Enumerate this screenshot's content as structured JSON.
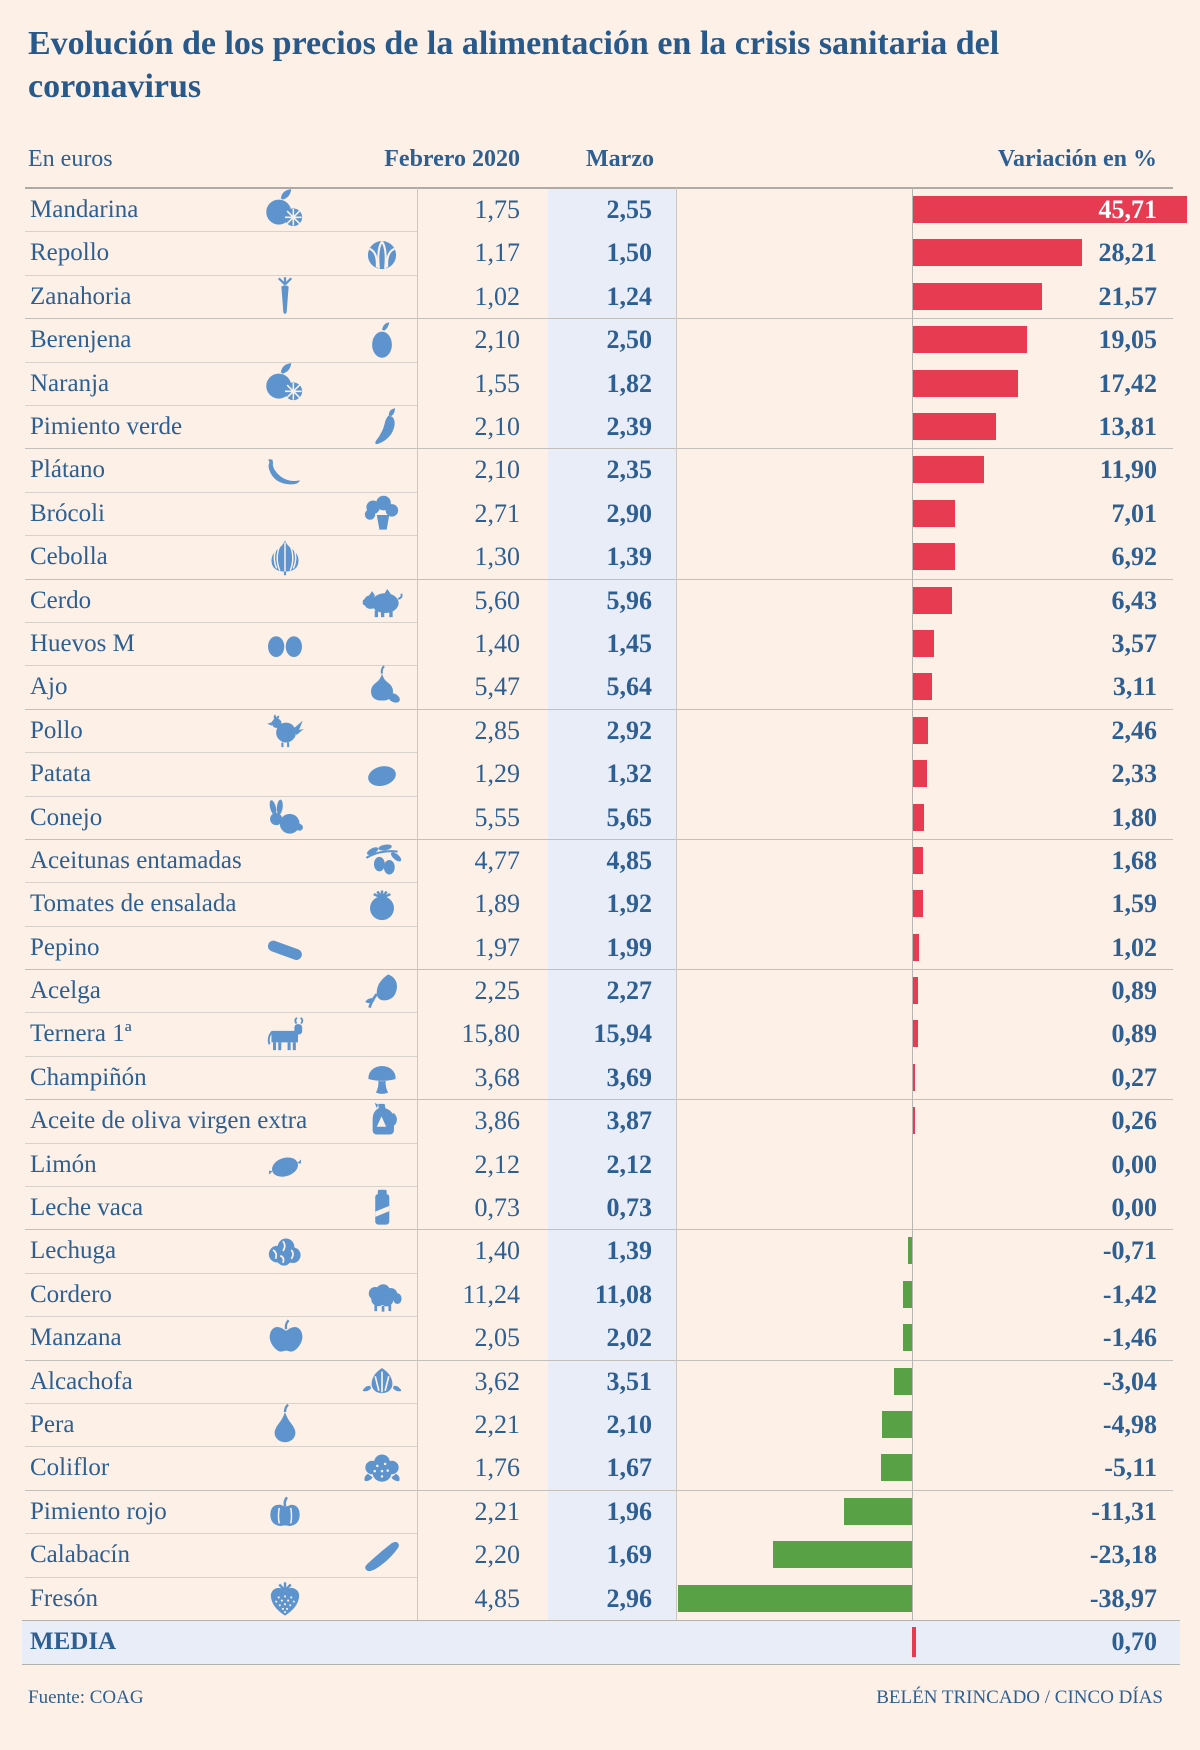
{
  "title": "Evolución de los precios de la alimentación en la crisis sanitaria del coronavirus",
  "table": {
    "unit_header": "En euros",
    "columns": [
      "Febrero 2020",
      "Marzo",
      "Variación en %"
    ]
  },
  "colors": {
    "background": "#fcf0e7",
    "text_blue": "#2d5f92",
    "icon_blue": "#5e94cd",
    "positive_bar": "#e73b52",
    "negative_bar": "#58a245",
    "march_band": "#e9edf7"
  },
  "chart_data": {
    "type": "bar",
    "orientation": "horizontal",
    "title": "Evolución de los precios de la alimentación en la crisis sanitaria del coronavirus",
    "unit_note": "En euros",
    "value_label": "Variación en %",
    "xlim": [
      -40,
      46
    ],
    "legend": "none",
    "rows": [
      {
        "name": "Mandarina",
        "icon": "mandarina",
        "icon_pos": "left",
        "feb": "1,75",
        "mar": "2,55",
        "var": 45.71,
        "var_label": "45,71"
      },
      {
        "name": "Repollo",
        "icon": "repollo",
        "icon_pos": "right",
        "feb": "1,17",
        "mar": "1,50",
        "var": 28.21,
        "var_label": "28,21"
      },
      {
        "name": "Zanahoria",
        "icon": "zanahoria",
        "icon_pos": "left",
        "feb": "1,02",
        "mar": "1,24",
        "var": 21.57,
        "var_label": "21,57"
      },
      {
        "name": "Berenjena",
        "icon": "berenjena",
        "icon_pos": "right",
        "feb": "2,10",
        "mar": "2,50",
        "var": 19.05,
        "var_label": "19,05"
      },
      {
        "name": "Naranja",
        "icon": "naranja",
        "icon_pos": "left",
        "feb": "1,55",
        "mar": "1,82",
        "var": 17.42,
        "var_label": "17,42"
      },
      {
        "name": "Pimiento verde",
        "icon": "pimiento-verde",
        "icon_pos": "right",
        "feb": "2,10",
        "mar": "2,39",
        "var": 13.81,
        "var_label": "13,81"
      },
      {
        "name": "Plátano",
        "icon": "platano",
        "icon_pos": "left",
        "feb": "2,10",
        "mar": "2,35",
        "var": 11.9,
        "var_label": "11,90"
      },
      {
        "name": "Brócoli",
        "icon": "brocoli",
        "icon_pos": "right",
        "feb": "2,71",
        "mar": "2,90",
        "var": 7.01,
        "var_label": "7,01"
      },
      {
        "name": "Cebolla",
        "icon": "cebolla",
        "icon_pos": "left",
        "feb": "1,30",
        "mar": "1,39",
        "var": 6.92,
        "var_label": "6,92"
      },
      {
        "name": "Cerdo",
        "icon": "cerdo",
        "icon_pos": "right",
        "feb": "5,60",
        "mar": "5,96",
        "var": 6.43,
        "var_label": "6,43"
      },
      {
        "name": "Huevos M",
        "icon": "huevos",
        "icon_pos": "left",
        "feb": "1,40",
        "mar": "1,45",
        "var": 3.57,
        "var_label": "3,57"
      },
      {
        "name": "Ajo",
        "icon": "ajo",
        "icon_pos": "right",
        "feb": "5,47",
        "mar": "5,64",
        "var": 3.11,
        "var_label": "3,11"
      },
      {
        "name": "Pollo",
        "icon": "pollo",
        "icon_pos": "left",
        "feb": "2,85",
        "mar": "2,92",
        "var": 2.46,
        "var_label": "2,46"
      },
      {
        "name": "Patata",
        "icon": "patata",
        "icon_pos": "right",
        "feb": "1,29",
        "mar": "1,32",
        "var": 2.33,
        "var_label": "2,33"
      },
      {
        "name": "Conejo",
        "icon": "conejo",
        "icon_pos": "left",
        "feb": "5,55",
        "mar": "5,65",
        "var": 1.8,
        "var_label": "1,80"
      },
      {
        "name": "Aceitunas entamadas",
        "icon": "aceitunas",
        "icon_pos": "right",
        "feb": "4,77",
        "mar": "4,85",
        "var": 1.68,
        "var_label": "1,68"
      },
      {
        "name": "Tomates de ensalada",
        "icon": "tomate",
        "icon_pos": "right",
        "feb": "1,89",
        "mar": "1,92",
        "var": 1.59,
        "var_label": "1,59"
      },
      {
        "name": "Pepino",
        "icon": "pepino",
        "icon_pos": "left",
        "feb": "1,97",
        "mar": "1,99",
        "var": 1.02,
        "var_label": "1,02"
      },
      {
        "name": "Acelga",
        "icon": "acelga",
        "icon_pos": "right",
        "feb": "2,25",
        "mar": "2,27",
        "var": 0.89,
        "var_label": "0,89"
      },
      {
        "name": "Ternera 1ª",
        "icon": "ternera",
        "icon_pos": "left",
        "feb": "15,80",
        "mar": "15,94",
        "var": 0.89,
        "var_label": "0,89"
      },
      {
        "name": "Champiñón",
        "icon": "champinon",
        "icon_pos": "right",
        "feb": "3,68",
        "mar": "3,69",
        "var": 0.27,
        "var_label": "0,27"
      },
      {
        "name": "Aceite de oliva virgen extra",
        "icon": "aceite",
        "icon_pos": "right",
        "feb": "3,86",
        "mar": "3,87",
        "var": 0.26,
        "var_label": "0,26"
      },
      {
        "name": "Limón",
        "icon": "limon",
        "icon_pos": "left",
        "feb": "2,12",
        "mar": "2,12",
        "var": 0.0,
        "var_label": "0,00"
      },
      {
        "name": "Leche vaca",
        "icon": "leche",
        "icon_pos": "right",
        "feb": "0,73",
        "mar": "0,73",
        "var": 0.0,
        "var_label": "0,00"
      },
      {
        "name": "Lechuga",
        "icon": "lechuga",
        "icon_pos": "left",
        "feb": "1,40",
        "mar": "1,39",
        "var": -0.71,
        "var_label": "-0,71"
      },
      {
        "name": "Cordero",
        "icon": "cordero",
        "icon_pos": "right",
        "feb": "11,24",
        "mar": "11,08",
        "var": -1.42,
        "var_label": "-1,42"
      },
      {
        "name": "Manzana",
        "icon": "manzana",
        "icon_pos": "left",
        "feb": "2,05",
        "mar": "2,02",
        "var": -1.46,
        "var_label": "-1,46"
      },
      {
        "name": "Alcachofa",
        "icon": "alcachofa",
        "icon_pos": "right",
        "feb": "3,62",
        "mar": "3,51",
        "var": -3.04,
        "var_label": "-3,04"
      },
      {
        "name": "Pera",
        "icon": "pera",
        "icon_pos": "left",
        "feb": "2,21",
        "mar": "2,10",
        "var": -4.98,
        "var_label": "-4,98"
      },
      {
        "name": "Coliflor",
        "icon": "coliflor",
        "icon_pos": "right",
        "feb": "1,76",
        "mar": "1,67",
        "var": -5.11,
        "var_label": "-5,11"
      },
      {
        "name": "Pimiento rojo",
        "icon": "pimiento-rojo",
        "icon_pos": "left",
        "feb": "2,21",
        "mar": "1,96",
        "var": -11.31,
        "var_label": "-11,31"
      },
      {
        "name": "Calabacín",
        "icon": "calabacin",
        "icon_pos": "right",
        "feb": "2,20",
        "mar": "1,69",
        "var": -23.18,
        "var_label": "-23,18"
      },
      {
        "name": "Fresón",
        "icon": "freson",
        "icon_pos": "left",
        "feb": "4,85",
        "mar": "2,96",
        "var": -38.97,
        "var_label": "-38,97"
      }
    ],
    "media": {
      "label": "MEDIA",
      "var": 0.7,
      "var_label": "0,70"
    }
  },
  "footer": {
    "source": "Fuente: COAG",
    "credit": "BELÉN TRINCADO / CINCO DÍAS"
  }
}
